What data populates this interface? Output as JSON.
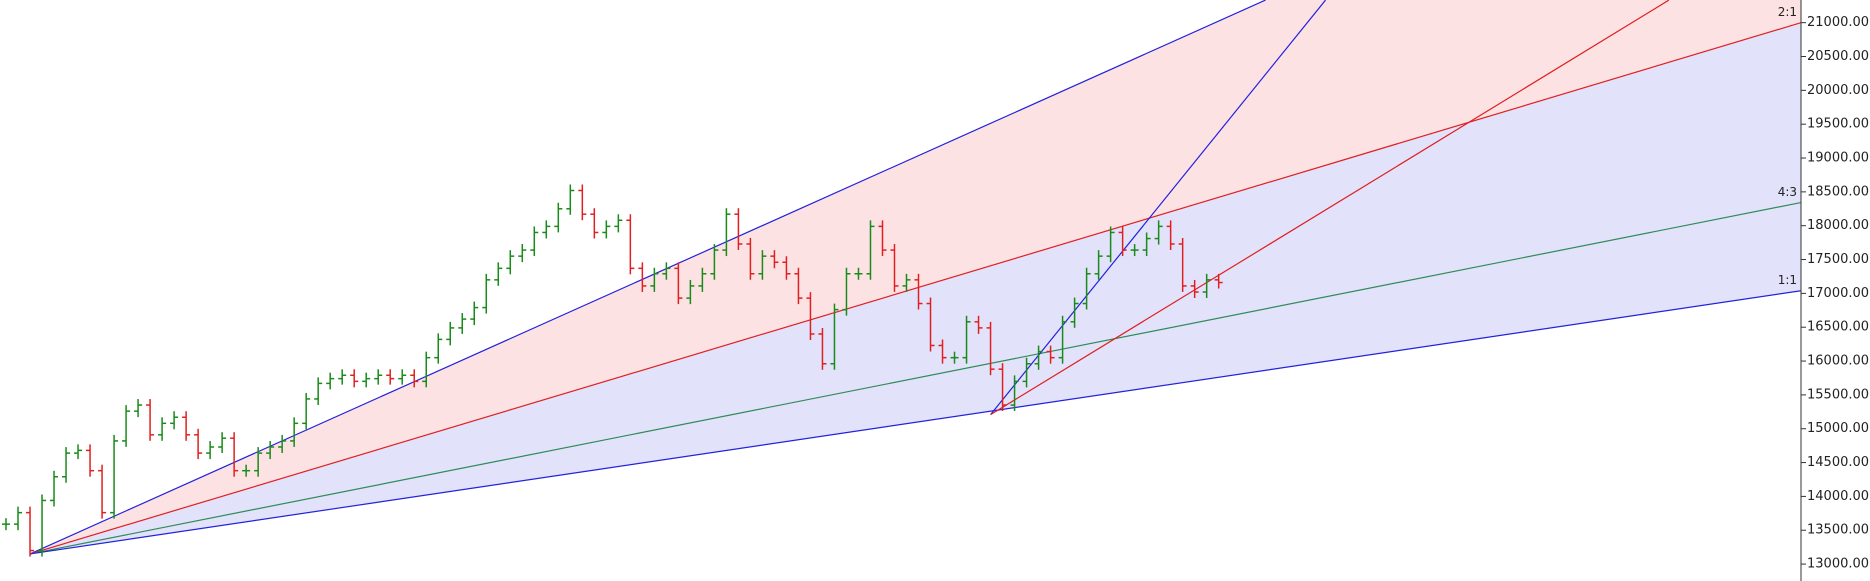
{
  "chart_data": {
    "type": "price-bars",
    "values": [
      13590,
      13760,
      13200,
      13940,
      14290,
      14640,
      14680,
      14380,
      13760,
      14820,
      15260,
      15350,
      14910,
      15080,
      15170,
      14910,
      14640,
      14730,
      14860,
      14380,
      14380,
      14640,
      14730,
      14820,
      15080,
      15440,
      15670,
      15740,
      15790,
      15700,
      15740,
      15790,
      15740,
      15790,
      15700,
      16050,
      16320,
      16490,
      16620,
      16790,
      17200,
      17370,
      17550,
      17640,
      17900,
      17990,
      18250,
      18520,
      18170,
      17900,
      17990,
      18080,
      17370,
      17110,
      17290,
      17370,
      16930,
      17110,
      17290,
      17640,
      18170,
      17730,
      17290,
      17550,
      17460,
      17290,
      16930,
      16400,
      15960,
      16760,
      17290,
      17290,
      17990,
      17640,
      17110,
      17200,
      16850,
      16230,
      16050,
      16050,
      16580,
      16490,
      15880,
      15350,
      15700,
      15960,
      16140,
      16050,
      16580,
      16850,
      17290,
      17550,
      17900,
      17640,
      17640,
      17810,
      17990,
      17730,
      17110,
      17020,
      17200,
      17160
    ],
    "up_color": "#1a8a1a",
    "down_color": "#e02020",
    "xlim": [
      0,
      150
    ],
    "ylim": [
      12750,
      21335
    ],
    "yticks": [
      {
        "value": 13000,
        "label": "13000.00"
      },
      {
        "value": 13500,
        "label": "13500.00"
      },
      {
        "value": 14000,
        "label": "14000.00"
      },
      {
        "value": 14500,
        "label": "14500.00"
      },
      {
        "value": 15000,
        "label": "15000.00"
      },
      {
        "value": 15500,
        "label": "15500.00"
      },
      {
        "value": 16000,
        "label": "16000.00"
      },
      {
        "value": 16500,
        "label": "16500.00"
      },
      {
        "value": 17000,
        "label": "17000.00"
      },
      {
        "value": 17500,
        "label": "17500.00"
      },
      {
        "value": 18000,
        "label": "18000.00"
      },
      {
        "value": 18500,
        "label": "18500.00"
      },
      {
        "value": 19000,
        "label": "19000.00"
      },
      {
        "value": 19500,
        "label": "19500.00"
      },
      {
        "value": 20000,
        "label": "20000.00"
      },
      {
        "value": 20500,
        "label": "20500.00"
      },
      {
        "value": 21000,
        "label": "21000.00"
      }
    ],
    "fans": [
      {
        "origin": {
          "x": 2.5,
          "y": 13150
        },
        "lines": [
          {
            "to": {
              "x": 105.4,
              "y": 21334
            },
            "color": "#2222dd",
            "fill": "#fde2e4"
          },
          {
            "to": {
              "x": 150,
              "y": 21000
            },
            "color": "#e02020",
            "fill": "#e2e2fb",
            "label": "2:1"
          },
          {
            "to": {
              "x": 150,
              "y": 18342
            },
            "color": "#2e8b57",
            "label": "4:3"
          },
          {
            "to": {
              "x": 150,
              "y": 17039
            },
            "color": "#2222dd",
            "label": "1:1"
          }
        ]
      },
      {
        "origin": {
          "x": 82.5,
          "y": 15208
        },
        "lines": [
          {
            "to": {
              "x": 110.4,
              "y": 21334
            },
            "color": "#2222dd"
          },
          {
            "to": {
              "x": 139,
              "y": 21334
            },
            "color": "#e02020"
          }
        ]
      }
    ]
  }
}
